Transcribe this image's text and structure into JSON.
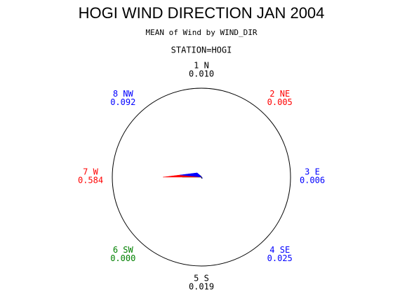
{
  "chart_data": {
    "type": "star",
    "title": "HOGI WIND DIRECTION JAN 2004",
    "subtitle": "MEAN of Wind by WIND_DIR",
    "group_label": "STATION=HOGI",
    "categories": [
      "1 N",
      "2 NE",
      "3 E",
      "4 SE",
      "5 S",
      "6 SW",
      "7 W",
      "8 NW"
    ],
    "values": [
      0.01,
      0.005,
      0.006,
      0.025,
      0.019,
      0.0,
      0.584,
      0.092
    ],
    "value_labels": [
      "0.010",
      "0.005",
      "0.006",
      "0.025",
      "0.019",
      "0.000",
      "0.584",
      "0.092"
    ],
    "colors": [
      "#000000",
      "#ff0000",
      "#0000ff",
      "#0000ff",
      "#000000",
      "#008000",
      "#ff0000",
      "#0000ff"
    ]
  }
}
